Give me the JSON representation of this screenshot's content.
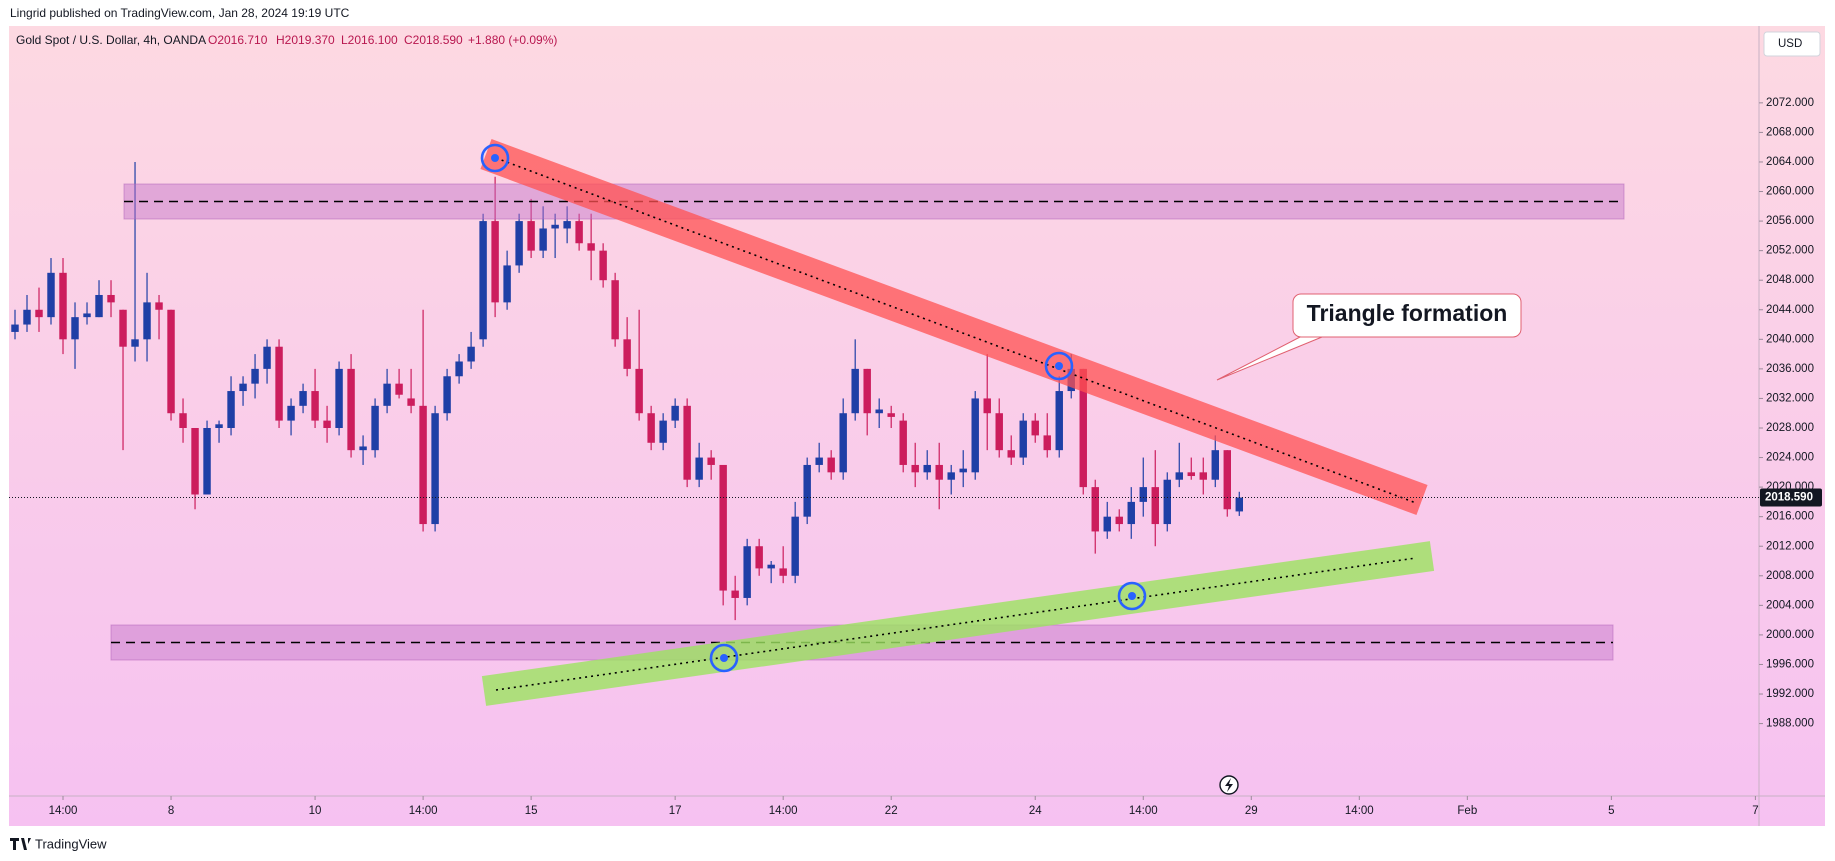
{
  "header": {
    "publisher": "Lingrid published on TradingView.com, Jan 28, 2024 19:19 UTC",
    "symbol": "Gold Spot / U.S. Dollar, 4h, OANDA",
    "ohlc": [
      "O2016.710",
      "H2019.370",
      "L2016.100",
      "C2018.590",
      "+1.880 (+0.09%)"
    ],
    "currency": "USD"
  },
  "footer": {
    "brand": "TradingView"
  },
  "annotation": "Triangle formation",
  "chart_data": {
    "type": "candlestick",
    "up_color": "#1f3fa6",
    "down_color": "#cc1d5d",
    "ylim": [
      1978.2,
      2082.4
    ],
    "yticks": [
      {
        "value": 1988,
        "label": "1988.000"
      },
      {
        "value": 1992,
        "label": "1992.000"
      },
      {
        "value": 1996,
        "label": "1996.000"
      },
      {
        "value": 2000,
        "label": "2000.000"
      },
      {
        "value": 2004,
        "label": "2004.000"
      },
      {
        "value": 2008,
        "label": "2008.000"
      },
      {
        "value": 2012,
        "label": "2012.000"
      },
      {
        "value": 2016,
        "label": "2016.000"
      },
      {
        "value": 2020,
        "label": "2020.000"
      },
      {
        "value": 2024,
        "label": "2024.000"
      },
      {
        "value": 2028,
        "label": "2028.000"
      },
      {
        "value": 2032,
        "label": "2032.000"
      },
      {
        "value": 2036,
        "label": "2036.000"
      },
      {
        "value": 2040,
        "label": "2040.000"
      },
      {
        "value": 2044,
        "label": "2044.000"
      },
      {
        "value": 2048,
        "label": "2048.000"
      },
      {
        "value": 2052,
        "label": "2052.000"
      },
      {
        "value": 2056,
        "label": "2056.000"
      },
      {
        "value": 2060,
        "label": "2060.000"
      },
      {
        "value": 2064,
        "label": "2064.000"
      },
      {
        "value": 2068,
        "label": "2068.000"
      },
      {
        "value": 2072,
        "label": "2072.000"
      }
    ],
    "xlim": [
      -0.5,
      145.3
    ],
    "xticks": [
      {
        "value": 4,
        "label": "14:00"
      },
      {
        "value": 13,
        "label": "8"
      },
      {
        "value": 25,
        "label": "10"
      },
      {
        "value": 34,
        "label": "14:00"
      },
      {
        "value": 43,
        "label": "15"
      },
      {
        "value": 55,
        "label": "17"
      },
      {
        "value": 64,
        "label": "14:00"
      },
      {
        "value": 73,
        "label": "22"
      },
      {
        "value": 85,
        "label": "24"
      },
      {
        "value": 94,
        "label": "14:00"
      },
      {
        "value": 103,
        "label": "29"
      },
      {
        "value": 112,
        "label": "14:00"
      },
      {
        "value": 121,
        "label": "Feb"
      },
      {
        "value": 133,
        "label": "5"
      },
      {
        "value": 145,
        "label": "7"
      }
    ],
    "last_price": {
      "value": 2018.59,
      "label": "2018.590"
    },
    "candles": [
      [
        2041,
        2044,
        2040,
        2042
      ],
      [
        2042,
        2046,
        2041,
        2044
      ],
      [
        2044,
        2047,
        2041,
        2043
      ],
      [
        2043,
        2051,
        2042,
        2049
      ],
      [
        2049,
        2051,
        2038,
        2040
      ],
      [
        2040,
        2045,
        2036,
        2043
      ],
      [
        2043,
        2045,
        2042,
        2043.5
      ],
      [
        2043,
        2048,
        2043,
        2046
      ],
      [
        2046,
        2048,
        2043,
        2045
      ],
      [
        2044,
        2044,
        2025,
        2039
      ],
      [
        2039,
        2064,
        2037,
        2040
      ],
      [
        2040,
        2049,
        2037,
        2045
      ],
      [
        2045,
        2046,
        2040,
        2044
      ],
      [
        2044,
        2044,
        2029,
        2030
      ],
      [
        2030,
        2032,
        2026,
        2028
      ],
      [
        2028,
        2028,
        2017,
        2019
      ],
      [
        2019,
        2029,
        2019,
        2028
      ],
      [
        2028,
        2029,
        2026,
        2028.5
      ],
      [
        2028,
        2035,
        2027,
        2033
      ],
      [
        2033,
        2035,
        2031,
        2034
      ],
      [
        2034,
        2038,
        2032,
        2036
      ],
      [
        2036,
        2040,
        2034,
        2039
      ],
      [
        2039,
        2040,
        2028,
        2029
      ],
      [
        2029,
        2032,
        2027,
        2031
      ],
      [
        2031,
        2034,
        2030,
        2033
      ],
      [
        2033,
        2036,
        2028,
        2029
      ],
      [
        2029,
        2031,
        2026,
        2028
      ],
      [
        2028,
        2037,
        2027,
        2036
      ],
      [
        2036,
        2038,
        2024,
        2025
      ],
      [
        2025,
        2027,
        2023,
        2025.5
      ],
      [
        2025,
        2032,
        2024,
        2031
      ],
      [
        2031,
        2036,
        2030,
        2034
      ],
      [
        2034,
        2036,
        2032,
        2032.5
      ],
      [
        2032,
        2036,
        2030,
        2031
      ],
      [
        2031,
        2044,
        2014,
        2015
      ],
      [
        2015,
        2031,
        2014,
        2030
      ],
      [
        2030,
        2036,
        2029,
        2035
      ],
      [
        2035,
        2038,
        2034,
        2037
      ],
      [
        2037,
        2041,
        2036,
        2039
      ],
      [
        2040,
        2057,
        2039,
        2056
      ],
      [
        2056,
        2062,
        2043,
        2045
      ],
      [
        2045,
        2052,
        2044,
        2050
      ],
      [
        2050,
        2057,
        2049,
        2056
      ],
      [
        2056,
        2059,
        2051,
        2052
      ],
      [
        2052,
        2058,
        2051,
        2055
      ],
      [
        2055,
        2057,
        2051,
        2055.5
      ],
      [
        2055,
        2058,
        2053,
        2056
      ],
      [
        2056,
        2057,
        2052,
        2053
      ],
      [
        2053,
        2057,
        2048,
        2052
      ],
      [
        2052,
        2053,
        2047,
        2048
      ],
      [
        2048,
        2049,
        2039,
        2040
      ],
      [
        2040,
        2043,
        2035,
        2036
      ],
      [
        2036,
        2044,
        2029,
        2030
      ],
      [
        2030,
        2031,
        2025,
        2026
      ],
      [
        2026,
        2030,
        2025,
        2029
      ],
      [
        2029,
        2032,
        2028,
        2031
      ],
      [
        2031,
        2032,
        2020,
        2021
      ],
      [
        2021,
        2026,
        2020,
        2024
      ],
      [
        2024,
        2025,
        2021,
        2023
      ],
      [
        2023,
        2023,
        2004,
        2006
      ],
      [
        2006,
        2008,
        2002,
        2005
      ],
      [
        2005,
        2013,
        2004,
        2012
      ],
      [
        2012,
        2013,
        2008,
        2009
      ],
      [
        2009,
        2010,
        2007,
        2009.5
      ],
      [
        2009,
        2012,
        2007,
        2008
      ],
      [
        2008,
        2018,
        2007,
        2016
      ],
      [
        2016,
        2024,
        2015,
        2023
      ],
      [
        2023,
        2026,
        2022,
        2024
      ],
      [
        2024,
        2025,
        2021,
        2022
      ],
      [
        2022,
        2032,
        2021,
        2030
      ],
      [
        2030,
        2040,
        2029,
        2036
      ],
      [
        2036,
        2036,
        2027,
        2030
      ],
      [
        2030,
        2032,
        2028,
        2030.5
      ],
      [
        2030,
        2031,
        2028,
        2029.5
      ],
      [
        2029,
        2030,
        2022,
        2023
      ],
      [
        2023,
        2026,
        2020,
        2022
      ],
      [
        2022,
        2025,
        2021,
        2023
      ],
      [
        2023,
        2026,
        2017,
        2021
      ],
      [
        2021,
        2023,
        2019,
        2022
      ],
      [
        2022,
        2025,
        2020,
        2022.5
      ],
      [
        2022,
        2033,
        2021,
        2032
      ],
      [
        2032,
        2038,
        2025,
        2030
      ],
      [
        2030,
        2032,
        2024,
        2025
      ],
      [
        2025,
        2027,
        2023,
        2024
      ],
      [
        2024,
        2030,
        2023,
        2029
      ],
      [
        2029,
        2030,
        2026,
        2027
      ],
      [
        2027,
        2030,
        2024,
        2025
      ],
      [
        2025,
        2035,
        2024,
        2033
      ],
      [
        2033,
        2038,
        2032,
        2036
      ],
      [
        2036,
        2036,
        2019,
        2020
      ],
      [
        2020,
        2021,
        2011,
        2014
      ],
      [
        2014,
        2018,
        2013,
        2016
      ],
      [
        2016,
        2017,
        2014,
        2015
      ],
      [
        2015,
        2020,
        2013,
        2018
      ],
      [
        2018,
        2024,
        2016,
        2020
      ],
      [
        2020,
        2025,
        2012,
        2015
      ],
      [
        2015,
        2022,
        2014,
        2021
      ],
      [
        2021,
        2026,
        2020,
        2022
      ],
      [
        2022,
        2024,
        2021,
        2021.5
      ],
      [
        2022,
        2024,
        2019,
        2021
      ],
      [
        2021,
        2027,
        2020,
        2025
      ],
      [
        2025,
        2025,
        2016,
        2017
      ],
      [
        2016.71,
        2019.37,
        2016.1,
        2018.59
      ]
    ]
  }
}
